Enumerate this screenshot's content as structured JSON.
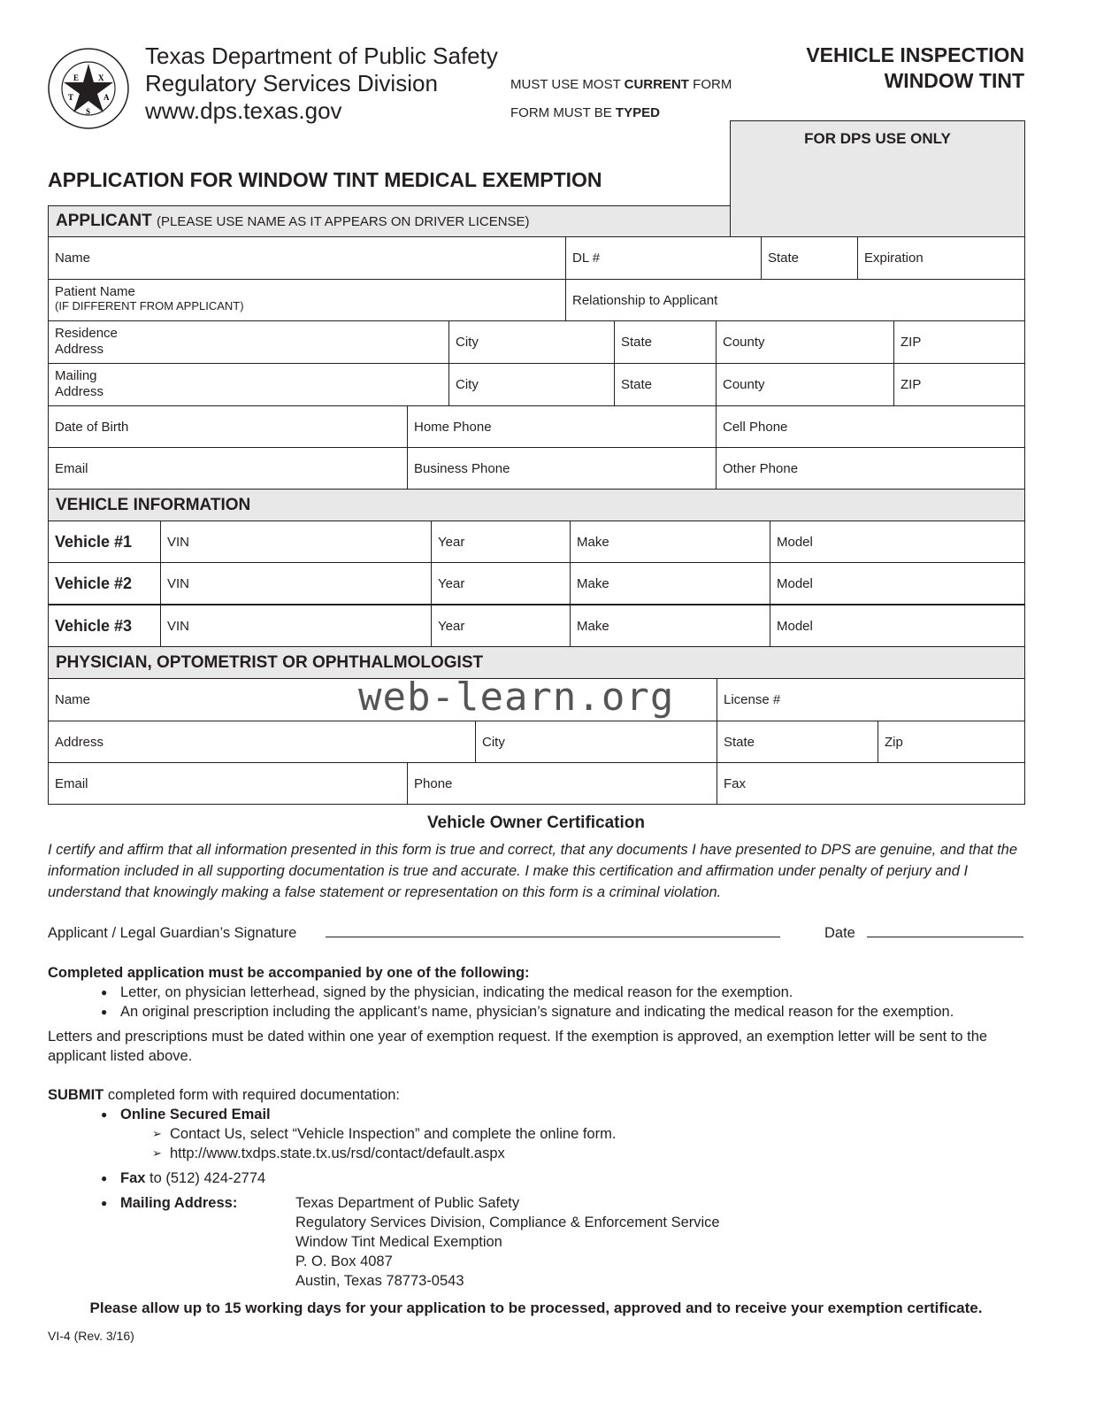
{
  "header": {
    "seal": {
      "icon": "texas-dps-seal-icon",
      "text": "DEPARTMENT OF PUBLIC SAFETY · TEXAS · COURTESY · SERVICE · PROTECTION"
    },
    "agency": "Texas Department of Public Safety",
    "division": "Regulatory Services Division",
    "website": "www.dps.texas.gov",
    "notice1_pre": "MUST USE MOST ",
    "notice1_bold": "CURRENT",
    "notice1_post": " FORM",
    "notice2_pre": "FORM MUST BE ",
    "notice2_bold": "TYPED",
    "form_title_line1": "VEHICLE INSPECTION",
    "form_title_line2": "WINDOW TINT",
    "dps_use": "FOR DPS USE ONLY",
    "title": "APPLICATION FOR WINDOW TINT MEDICAL EXEMPTION"
  },
  "applicant": {
    "heading": "APPLICANT",
    "heading_note": "(PLEASE USE NAME AS IT APPEARS ON DRIVER LICENSE)",
    "name": "Name",
    "dl": "DL #",
    "state": "State",
    "expiration": "Expiration",
    "patient": "Patient Name",
    "patient_note": "(IF DIFFERENT FROM APPLICANT)",
    "relationship": "Relationship to Applicant",
    "residence": "Residence",
    "residence2": "Address",
    "mailing": "Mailing",
    "mailing2": "Address",
    "city": "City",
    "county": "County",
    "zip": "ZIP",
    "dob": "Date of Birth",
    "home_phone": "Home Phone",
    "cell_phone": "Cell Phone",
    "email": "Email",
    "business_phone": "Business Phone",
    "other_phone": "Other Phone"
  },
  "vehicle": {
    "heading": "VEHICLE INFORMATION",
    "rows": [
      {
        "label": "Vehicle #1"
      },
      {
        "label": "Vehicle #2"
      },
      {
        "label": "Vehicle #3"
      }
    ],
    "vin": "VIN",
    "year": "Year",
    "make": "Make",
    "model": "Model"
  },
  "physician": {
    "heading": "PHYSICIAN, OPTOMETRIST OR OPHTHALMOLOGIST",
    "name": "Name",
    "license": "License #",
    "address": "Address",
    "city": "City",
    "state": "State",
    "zip": "Zip",
    "email": "Email",
    "phone": "Phone",
    "fax": "Fax"
  },
  "watermark": "web-learn.org",
  "certification": {
    "title": "Vehicle Owner Certification",
    "text": "I certify and affirm that all information presented in this form is true and correct, that any documents I have presented to DPS are genuine, and that the information included in all supporting documentation is true and accurate. I make this certification and affirmation under penalty of perjury and I understand that knowingly making a false statement or representation on this form is a criminal violation.",
    "signature_label": "Applicant / Legal Guardian’s Signature",
    "date_label": "Date"
  },
  "requirements": {
    "heading": "Completed application must be accompanied by one of the following:",
    "items": [
      "Letter, on physician letterhead, signed by the physician, indicating the medical reason for the exemption.",
      "An original prescription including the applicant’s name, physician’s signature and indicating the medical reason for the exemption."
    ],
    "note": "Letters and prescriptions must be dated within one year of exemption request. If the exemption is approved, an exemption letter will be sent to the applicant listed above."
  },
  "submit": {
    "bold": "SUBMIT",
    "text": " completed form with required documentation:",
    "online": "Online Secured Email",
    "online_items": [
      "Contact Us, select “Vehicle Inspection” and complete the online form.",
      "http://www.txdps.state.tx.us/rsd/contact/default.aspx"
    ],
    "fax_bold": "Fax",
    "fax_text": " to (512) 424-2774",
    "mail_bold": "Mailing Address:",
    "mail_lines": [
      "Texas Department of Public Safety",
      "Regulatory Services Division, Compliance & Enforcement Service",
      "Window Tint Medical Exemption",
      "P. O. Box 4087",
      "Austin, Texas 78773-0543"
    ]
  },
  "footer": {
    "allow": "Please allow up to 15 working days for your application to be processed, approved and to receive your exemption certificate.",
    "rev": "VI-4 (Rev. 3/16)"
  }
}
